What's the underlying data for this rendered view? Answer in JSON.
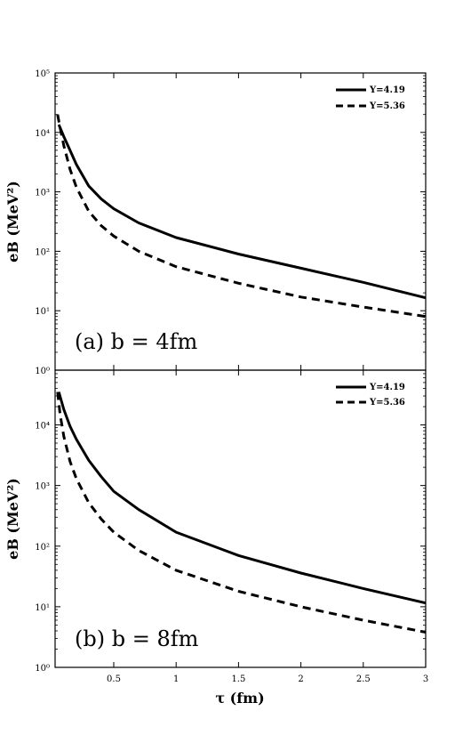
{
  "chart_data": [
    {
      "type": "line",
      "panel_label": "(a) b = 4fm",
      "ylabel": "eB (MeV²)",
      "y_scale": "log",
      "ylim": [
        1,
        100000
      ],
      "xlim": [
        0.03,
        3
      ],
      "y_tick_labels": [
        "10⁰",
        "10¹",
        "10²",
        "10³",
        "10⁴",
        "10⁵"
      ],
      "x_tick_labels": [],
      "legend_position": "top-right",
      "series": [
        {
          "name": "Y=4.19",
          "style": "solid",
          "points": [
            [
              0.06,
              13500
            ],
            [
              0.1,
              8500
            ],
            [
              0.15,
              5000
            ],
            [
              0.2,
              2900
            ],
            [
              0.3,
              1250
            ],
            [
              0.4,
              760
            ],
            [
              0.5,
              520
            ],
            [
              0.7,
              300
            ],
            [
              1.0,
              170
            ],
            [
              1.5,
              90
            ],
            [
              2.0,
              52
            ],
            [
              2.5,
              30
            ],
            [
              3.0,
              16.5
            ]
          ]
        },
        {
          "name": "Y=5.36",
          "style": "dashed",
          "points": [
            [
              0.05,
              20000
            ],
            [
              0.07,
              12000
            ],
            [
              0.1,
              6000
            ],
            [
              0.15,
              2400
            ],
            [
              0.2,
              1200
            ],
            [
              0.3,
              470
            ],
            [
              0.4,
              270
            ],
            [
              0.5,
              180
            ],
            [
              0.7,
              100
            ],
            [
              1.0,
              55
            ],
            [
              1.5,
              29
            ],
            [
              2.0,
              17
            ],
            [
              2.5,
              11.5
            ],
            [
              3.0,
              8
            ]
          ]
        }
      ]
    },
    {
      "type": "line",
      "panel_label": "(b) b = 8fm",
      "ylabel": "eB (MeV²)",
      "xlabel": "τ (fm)",
      "y_scale": "log",
      "ylim": [
        1,
        80000
      ],
      "xlim": [
        0.03,
        3
      ],
      "y_tick_labels": [
        "10⁰",
        "10¹",
        "10²",
        "10³",
        "10⁴"
      ],
      "x_ticks": [
        0.5,
        1,
        1.5,
        2,
        2.5,
        3
      ],
      "x_tick_labels": [
        "0.5",
        "1",
        "1.5",
        "2",
        "2.5",
        "3"
      ],
      "legend_position": "top-right",
      "series": [
        {
          "name": "Y=4.19",
          "style": "solid",
          "points": [
            [
              0.06,
              35000
            ],
            [
              0.1,
              18000
            ],
            [
              0.15,
              9500
            ],
            [
              0.2,
              5800
            ],
            [
              0.3,
              2600
            ],
            [
              0.4,
              1400
            ],
            [
              0.5,
              800
            ],
            [
              0.7,
              400
            ],
            [
              1.0,
              170
            ],
            [
              1.5,
              70
            ],
            [
              2.0,
              36
            ],
            [
              2.5,
              20
            ],
            [
              3.0,
              11.5
            ]
          ]
        },
        {
          "name": "Y=5.36",
          "style": "dashed",
          "points": [
            [
              0.05,
              35000
            ],
            [
              0.07,
              15000
            ],
            [
              0.1,
              6500
            ],
            [
              0.15,
              2500
            ],
            [
              0.2,
              1300
            ],
            [
              0.3,
              520
            ],
            [
              0.4,
              280
            ],
            [
              0.5,
              170
            ],
            [
              0.7,
              85
            ],
            [
              1.0,
              40
            ],
            [
              1.5,
              18
            ],
            [
              2.0,
              10
            ],
            [
              2.5,
              6
            ],
            [
              3.0,
              3.8
            ]
          ]
        }
      ]
    }
  ]
}
